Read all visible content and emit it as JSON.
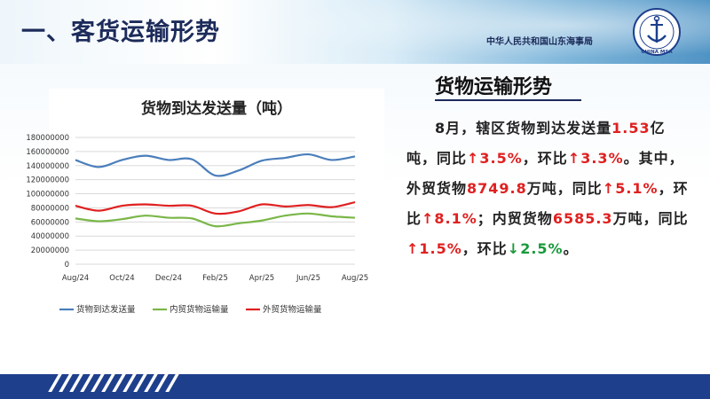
{
  "header": {
    "title": "一、客货运输形势",
    "org_name": "中华人民共和国山东海事局",
    "logo_text": "CHINA MSA"
  },
  "section": {
    "heading": "货物运输形势"
  },
  "summary": {
    "p1": "8月，辖区货物到达发送量",
    "v1": "1.53",
    "p2": "亿吨，同比",
    "arrow_up": "↑",
    "arrow_down": "↓",
    "v2": "3.5%",
    "p3": "，环比",
    "v3": "3.3%",
    "p4": "。其中，外贸货物",
    "v4": "8749.8",
    "p5": "万吨，同比",
    "v5": "5.1%",
    "p6": "，环比",
    "v6": "8.1%",
    "p7": "；内贸货物",
    "v7": "6585.3",
    "p8": "万吨，同比",
    "v8": "1.5%",
    "p9": "，环比",
    "v9": "2.5%",
    "p10": "。"
  },
  "colors": {
    "series_total": "#4a7ebb",
    "series_domestic": "#7ab648",
    "series_foreign": "#e02020",
    "up": "#e02020",
    "down": "#1a9a3a"
  },
  "chart_data": {
    "type": "line",
    "title": "货物到达发送量（吨）",
    "xlabel": "",
    "ylabel": "",
    "x_ticks": [
      "Aug/24",
      "Oct/24",
      "Dec/24",
      "Feb/25",
      "Apr/25",
      "Jun/25",
      "Aug/25"
    ],
    "x": [
      "Aug/24",
      "Sep/24",
      "Oct/24",
      "Nov/24",
      "Dec/24",
      "Jan/25",
      "Feb/25",
      "Mar/25",
      "Apr/25",
      "May/25",
      "Jun/25",
      "Jul/25",
      "Aug/25"
    ],
    "y_ticks": [
      "0",
      "20000000",
      "40000000",
      "60000000",
      "80000000",
      "100000000",
      "120000000",
      "140000000",
      "160000000",
      "180000000"
    ],
    "ylim": [
      0,
      180000000
    ],
    "grid": true,
    "legend_position": "bottom",
    "series": [
      {
        "name": "货物到达发送量",
        "values": [
          148000000,
          138000000,
          148000000,
          154000000,
          148000000,
          149000000,
          126000000,
          133000000,
          147000000,
          151000000,
          156000000,
          148000000,
          153000000
        ]
      },
      {
        "name": "内贸货物运输量",
        "values": [
          65000000,
          61000000,
          64000000,
          69000000,
          66000000,
          65000000,
          54000000,
          58000000,
          62000000,
          69000000,
          72000000,
          68000000,
          66000000
        ]
      },
      {
        "name": "外贸货物运输量",
        "values": [
          83000000,
          76000000,
          83000000,
          85000000,
          83000000,
          83000000,
          72000000,
          75000000,
          85000000,
          82000000,
          84000000,
          81000000,
          88000000
        ]
      }
    ]
  }
}
